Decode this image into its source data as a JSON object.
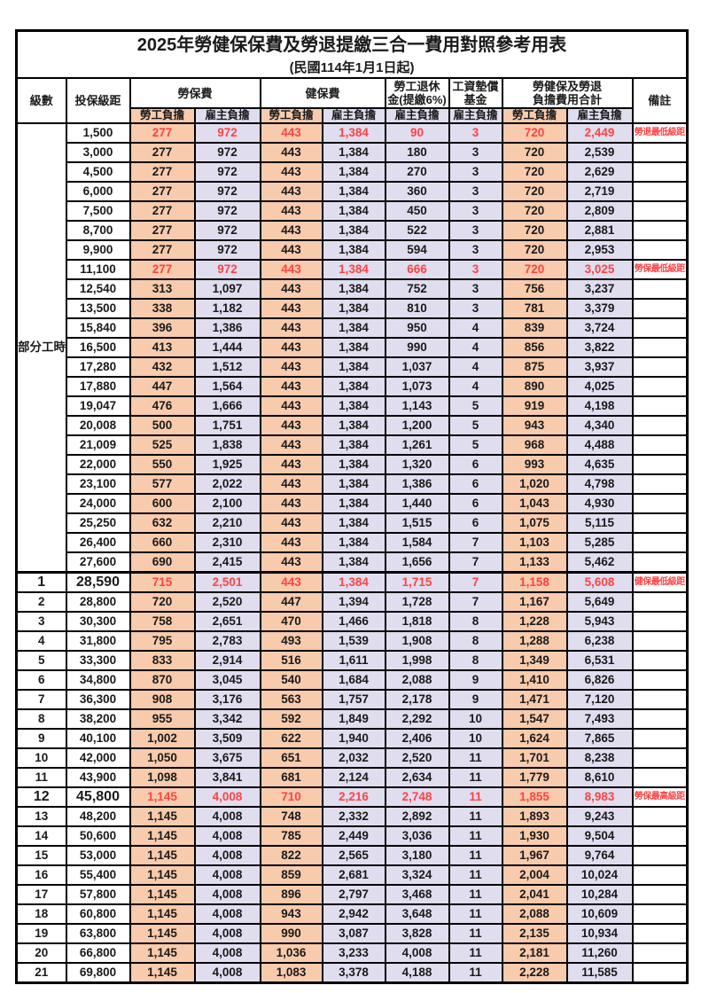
{
  "title": "2025年勞健保保費及勞退提繳三合一費用對照參考用表",
  "subtitle": "(民國114年1月1日起)",
  "header": {
    "level": "級數",
    "bracket": "投保級距",
    "labor": "勞保費",
    "health": "健保費",
    "pension_l1": "勞工退休",
    "pension_l2": "金(提繳6%)",
    "wage_l1": "工資墊償",
    "wage_l2": "基金",
    "total_l1": "勞健保及勞退",
    "total_l2": "負擔費用合計",
    "remarks": "備註",
    "employee": "勞工負擔",
    "employer": "雇主負擔"
  },
  "part_time_label": "部分工時",
  "part_time_rowspan": 23,
  "colors": {
    "employee_bg": "#F8CBAD",
    "employer_bg": "#E0DDEF",
    "highlight_red": "#FF4242"
  },
  "rows": [
    {
      "level": "",
      "bracket": "1,500",
      "v": [
        "277",
        "972",
        "443",
        "1,384",
        "90",
        "3",
        "720",
        "2,449"
      ],
      "remark": "勞退最低級距",
      "red": true
    },
    {
      "level": "",
      "bracket": "3,000",
      "v": [
        "277",
        "972",
        "443",
        "1,384",
        "180",
        "3",
        "720",
        "2,539"
      ],
      "remark": "",
      "red": false
    },
    {
      "level": "",
      "bracket": "4,500",
      "v": [
        "277",
        "972",
        "443",
        "1,384",
        "270",
        "3",
        "720",
        "2,629"
      ],
      "remark": "",
      "red": false
    },
    {
      "level": "",
      "bracket": "6,000",
      "v": [
        "277",
        "972",
        "443",
        "1,384",
        "360",
        "3",
        "720",
        "2,719"
      ],
      "remark": "",
      "red": false
    },
    {
      "level": "",
      "bracket": "7,500",
      "v": [
        "277",
        "972",
        "443",
        "1,384",
        "450",
        "3",
        "720",
        "2,809"
      ],
      "remark": "",
      "red": false
    },
    {
      "level": "",
      "bracket": "8,700",
      "v": [
        "277",
        "972",
        "443",
        "1,384",
        "522",
        "3",
        "720",
        "2,881"
      ],
      "remark": "",
      "red": false
    },
    {
      "level": "",
      "bracket": "9,900",
      "v": [
        "277",
        "972",
        "443",
        "1,384",
        "594",
        "3",
        "720",
        "2,953"
      ],
      "remark": "",
      "red": false
    },
    {
      "level": "",
      "bracket": "11,100",
      "v": [
        "277",
        "972",
        "443",
        "1,384",
        "666",
        "3",
        "720",
        "3,025"
      ],
      "remark": "勞保最低級距",
      "red": true
    },
    {
      "level": "",
      "bracket": "12,540",
      "v": [
        "313",
        "1,097",
        "443",
        "1,384",
        "752",
        "3",
        "756",
        "3,237"
      ],
      "remark": "",
      "red": false
    },
    {
      "level": "",
      "bracket": "13,500",
      "v": [
        "338",
        "1,182",
        "443",
        "1,384",
        "810",
        "3",
        "781",
        "3,379"
      ],
      "remark": "",
      "red": false
    },
    {
      "level": "",
      "bracket": "15,840",
      "v": [
        "396",
        "1,386",
        "443",
        "1,384",
        "950",
        "4",
        "839",
        "3,724"
      ],
      "remark": "",
      "red": false
    },
    {
      "level": "",
      "bracket": "16,500",
      "v": [
        "413",
        "1,444",
        "443",
        "1,384",
        "990",
        "4",
        "856",
        "3,822"
      ],
      "remark": "",
      "red": false
    },
    {
      "level": "",
      "bracket": "17,280",
      "v": [
        "432",
        "1,512",
        "443",
        "1,384",
        "1,037",
        "4",
        "875",
        "3,937"
      ],
      "remark": "",
      "red": false
    },
    {
      "level": "",
      "bracket": "17,880",
      "v": [
        "447",
        "1,564",
        "443",
        "1,384",
        "1,073",
        "4",
        "890",
        "4,025"
      ],
      "remark": "",
      "red": false
    },
    {
      "level": "",
      "bracket": "19,047",
      "v": [
        "476",
        "1,666",
        "443",
        "1,384",
        "1,143",
        "5",
        "919",
        "4,198"
      ],
      "remark": "",
      "red": false
    },
    {
      "level": "",
      "bracket": "20,008",
      "v": [
        "500",
        "1,751",
        "443",
        "1,384",
        "1,200",
        "5",
        "943",
        "4,340"
      ],
      "remark": "",
      "red": false
    },
    {
      "level": "",
      "bracket": "21,009",
      "v": [
        "525",
        "1,838",
        "443",
        "1,384",
        "1,261",
        "5",
        "968",
        "4,488"
      ],
      "remark": "",
      "red": false
    },
    {
      "level": "",
      "bracket": "22,000",
      "v": [
        "550",
        "1,925",
        "443",
        "1,384",
        "1,320",
        "6",
        "993",
        "4,635"
      ],
      "remark": "",
      "red": false
    },
    {
      "level": "",
      "bracket": "23,100",
      "v": [
        "577",
        "2,022",
        "443",
        "1,384",
        "1,386",
        "6",
        "1,020",
        "4,798"
      ],
      "remark": "",
      "red": false
    },
    {
      "level": "",
      "bracket": "24,000",
      "v": [
        "600",
        "2,100",
        "443",
        "1,384",
        "1,440",
        "6",
        "1,043",
        "4,930"
      ],
      "remark": "",
      "red": false
    },
    {
      "level": "",
      "bracket": "25,250",
      "v": [
        "632",
        "2,210",
        "443",
        "1,384",
        "1,515",
        "6",
        "1,075",
        "5,115"
      ],
      "remark": "",
      "red": false
    },
    {
      "level": "",
      "bracket": "26,400",
      "v": [
        "660",
        "2,310",
        "443",
        "1,384",
        "1,584",
        "7",
        "1,103",
        "5,285"
      ],
      "remark": "",
      "red": false
    },
    {
      "level": "",
      "bracket": "27,600",
      "v": [
        "690",
        "2,415",
        "443",
        "1,384",
        "1,656",
        "7",
        "1,133",
        "5,462"
      ],
      "remark": "",
      "red": false
    },
    {
      "level": "1",
      "bracket": "28,590",
      "v": [
        "715",
        "2,501",
        "443",
        "1,384",
        "1,715",
        "7",
        "1,158",
        "5,608"
      ],
      "remark": "健保最低級距",
      "red": true,
      "big": true
    },
    {
      "level": "2",
      "bracket": "28,800",
      "v": [
        "720",
        "2,520",
        "447",
        "1,394",
        "1,728",
        "7",
        "1,167",
        "5,649"
      ],
      "remark": "",
      "red": false
    },
    {
      "level": "3",
      "bracket": "30,300",
      "v": [
        "758",
        "2,651",
        "470",
        "1,466",
        "1,818",
        "8",
        "1,228",
        "5,943"
      ],
      "remark": "",
      "red": false
    },
    {
      "level": "4",
      "bracket": "31,800",
      "v": [
        "795",
        "2,783",
        "493",
        "1,539",
        "1,908",
        "8",
        "1,288",
        "6,238"
      ],
      "remark": "",
      "red": false
    },
    {
      "level": "5",
      "bracket": "33,300",
      "v": [
        "833",
        "2,914",
        "516",
        "1,611",
        "1,998",
        "8",
        "1,349",
        "6,531"
      ],
      "remark": "",
      "red": false
    },
    {
      "level": "6",
      "bracket": "34,800",
      "v": [
        "870",
        "3,045",
        "540",
        "1,684",
        "2,088",
        "9",
        "1,410",
        "6,826"
      ],
      "remark": "",
      "red": false
    },
    {
      "level": "7",
      "bracket": "36,300",
      "v": [
        "908",
        "3,176",
        "563",
        "1,757",
        "2,178",
        "9",
        "1,471",
        "7,120"
      ],
      "remark": "",
      "red": false
    },
    {
      "level": "8",
      "bracket": "38,200",
      "v": [
        "955",
        "3,342",
        "592",
        "1,849",
        "2,292",
        "10",
        "1,547",
        "7,493"
      ],
      "remark": "",
      "red": false
    },
    {
      "level": "9",
      "bracket": "40,100",
      "v": [
        "1,002",
        "3,509",
        "622",
        "1,940",
        "2,406",
        "10",
        "1,624",
        "7,865"
      ],
      "remark": "",
      "red": false
    },
    {
      "level": "10",
      "bracket": "42,000",
      "v": [
        "1,050",
        "3,675",
        "651",
        "2,032",
        "2,520",
        "11",
        "1,701",
        "8,238"
      ],
      "remark": "",
      "red": false
    },
    {
      "level": "11",
      "bracket": "43,900",
      "v": [
        "1,098",
        "3,841",
        "681",
        "2,124",
        "2,634",
        "11",
        "1,779",
        "8,610"
      ],
      "remark": "",
      "red": false
    },
    {
      "level": "12",
      "bracket": "45,800",
      "v": [
        "1,145",
        "4,008",
        "710",
        "2,216",
        "2,748",
        "11",
        "1,855",
        "8,983"
      ],
      "remark": "勞保最高級距",
      "red": true,
      "big": true
    },
    {
      "level": "13",
      "bracket": "48,200",
      "v": [
        "1,145",
        "4,008",
        "748",
        "2,332",
        "2,892",
        "11",
        "1,893",
        "9,243"
      ],
      "remark": "",
      "red": false
    },
    {
      "level": "14",
      "bracket": "50,600",
      "v": [
        "1,145",
        "4,008",
        "785",
        "2,449",
        "3,036",
        "11",
        "1,930",
        "9,504"
      ],
      "remark": "",
      "red": false
    },
    {
      "level": "15",
      "bracket": "53,000",
      "v": [
        "1,145",
        "4,008",
        "822",
        "2,565",
        "3,180",
        "11",
        "1,967",
        "9,764"
      ],
      "remark": "",
      "red": false
    },
    {
      "level": "16",
      "bracket": "55,400",
      "v": [
        "1,145",
        "4,008",
        "859",
        "2,681",
        "3,324",
        "11",
        "2,004",
        "10,024"
      ],
      "remark": "",
      "red": false
    },
    {
      "level": "17",
      "bracket": "57,800",
      "v": [
        "1,145",
        "4,008",
        "896",
        "2,797",
        "3,468",
        "11",
        "2,041",
        "10,284"
      ],
      "remark": "",
      "red": false
    },
    {
      "level": "18",
      "bracket": "60,800",
      "v": [
        "1,145",
        "4,008",
        "943",
        "2,942",
        "3,648",
        "11",
        "2,088",
        "10,609"
      ],
      "remark": "",
      "red": false
    },
    {
      "level": "19",
      "bracket": "63,800",
      "v": [
        "1,145",
        "4,008",
        "990",
        "3,087",
        "3,828",
        "11",
        "2,135",
        "10,934"
      ],
      "remark": "",
      "red": false
    },
    {
      "level": "20",
      "bracket": "66,800",
      "v": [
        "1,145",
        "4,008",
        "1,036",
        "3,233",
        "4,008",
        "11",
        "2,181",
        "11,260"
      ],
      "remark": "",
      "red": false
    },
    {
      "level": "21",
      "bracket": "69,800",
      "v": [
        "1,145",
        "4,008",
        "1,083",
        "3,378",
        "4,188",
        "11",
        "2,228",
        "11,585"
      ],
      "remark": "",
      "red": false
    }
  ]
}
